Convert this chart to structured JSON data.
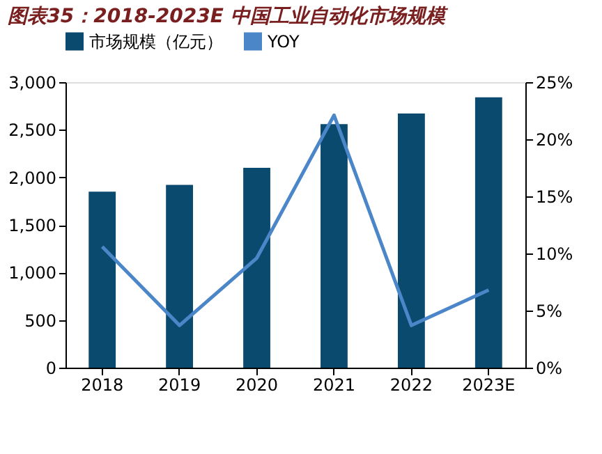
{
  "chart_data": {
    "type": "bar",
    "title": "图表35：2018-2023E 中国工业自动化市场规模",
    "categories": [
      "2018",
      "2019",
      "2020",
      "2021",
      "2022",
      "2023E"
    ],
    "series": [
      {
        "name": "市场规模（亿元）",
        "color": "#0b4a6f",
        "values": [
          1850,
          1920,
          2100,
          2560,
          2670,
          2840
        ]
      },
      {
        "name": "YOY",
        "type": "line",
        "axis": "y2",
        "color": "#4a86c8",
        "values": [
          10.6,
          3.7,
          9.6,
          22.1,
          3.7,
          6.8
        ]
      }
    ],
    "ylim": [
      0,
      3000
    ],
    "yticks": [
      0,
      {
        "value": 500,
        "label": "500"
      },
      {
        "value": 1000,
        "label": "1,000"
      },
      {
        "value": 1500,
        "label": "1,500"
      },
      {
        "value": 2000,
        "label": "2,000"
      },
      {
        "value": 2500,
        "label": "2,500"
      },
      {
        "value": 3000,
        "label": "3,000"
      }
    ],
    "y2lim": [
      0,
      25
    ],
    "y2ticks": [
      {
        "value": 0,
        "label": "0%"
      },
      {
        "value": 5,
        "label": "5%"
      },
      {
        "value": 10,
        "label": "10%"
      },
      {
        "value": 15,
        "label": "15%"
      },
      {
        "value": 20,
        "label": "20%"
      },
      {
        "value": 25,
        "label": "25%"
      }
    ],
    "legend": "top",
    "grid": false,
    "marker": "none",
    "line_style": "solid"
  }
}
